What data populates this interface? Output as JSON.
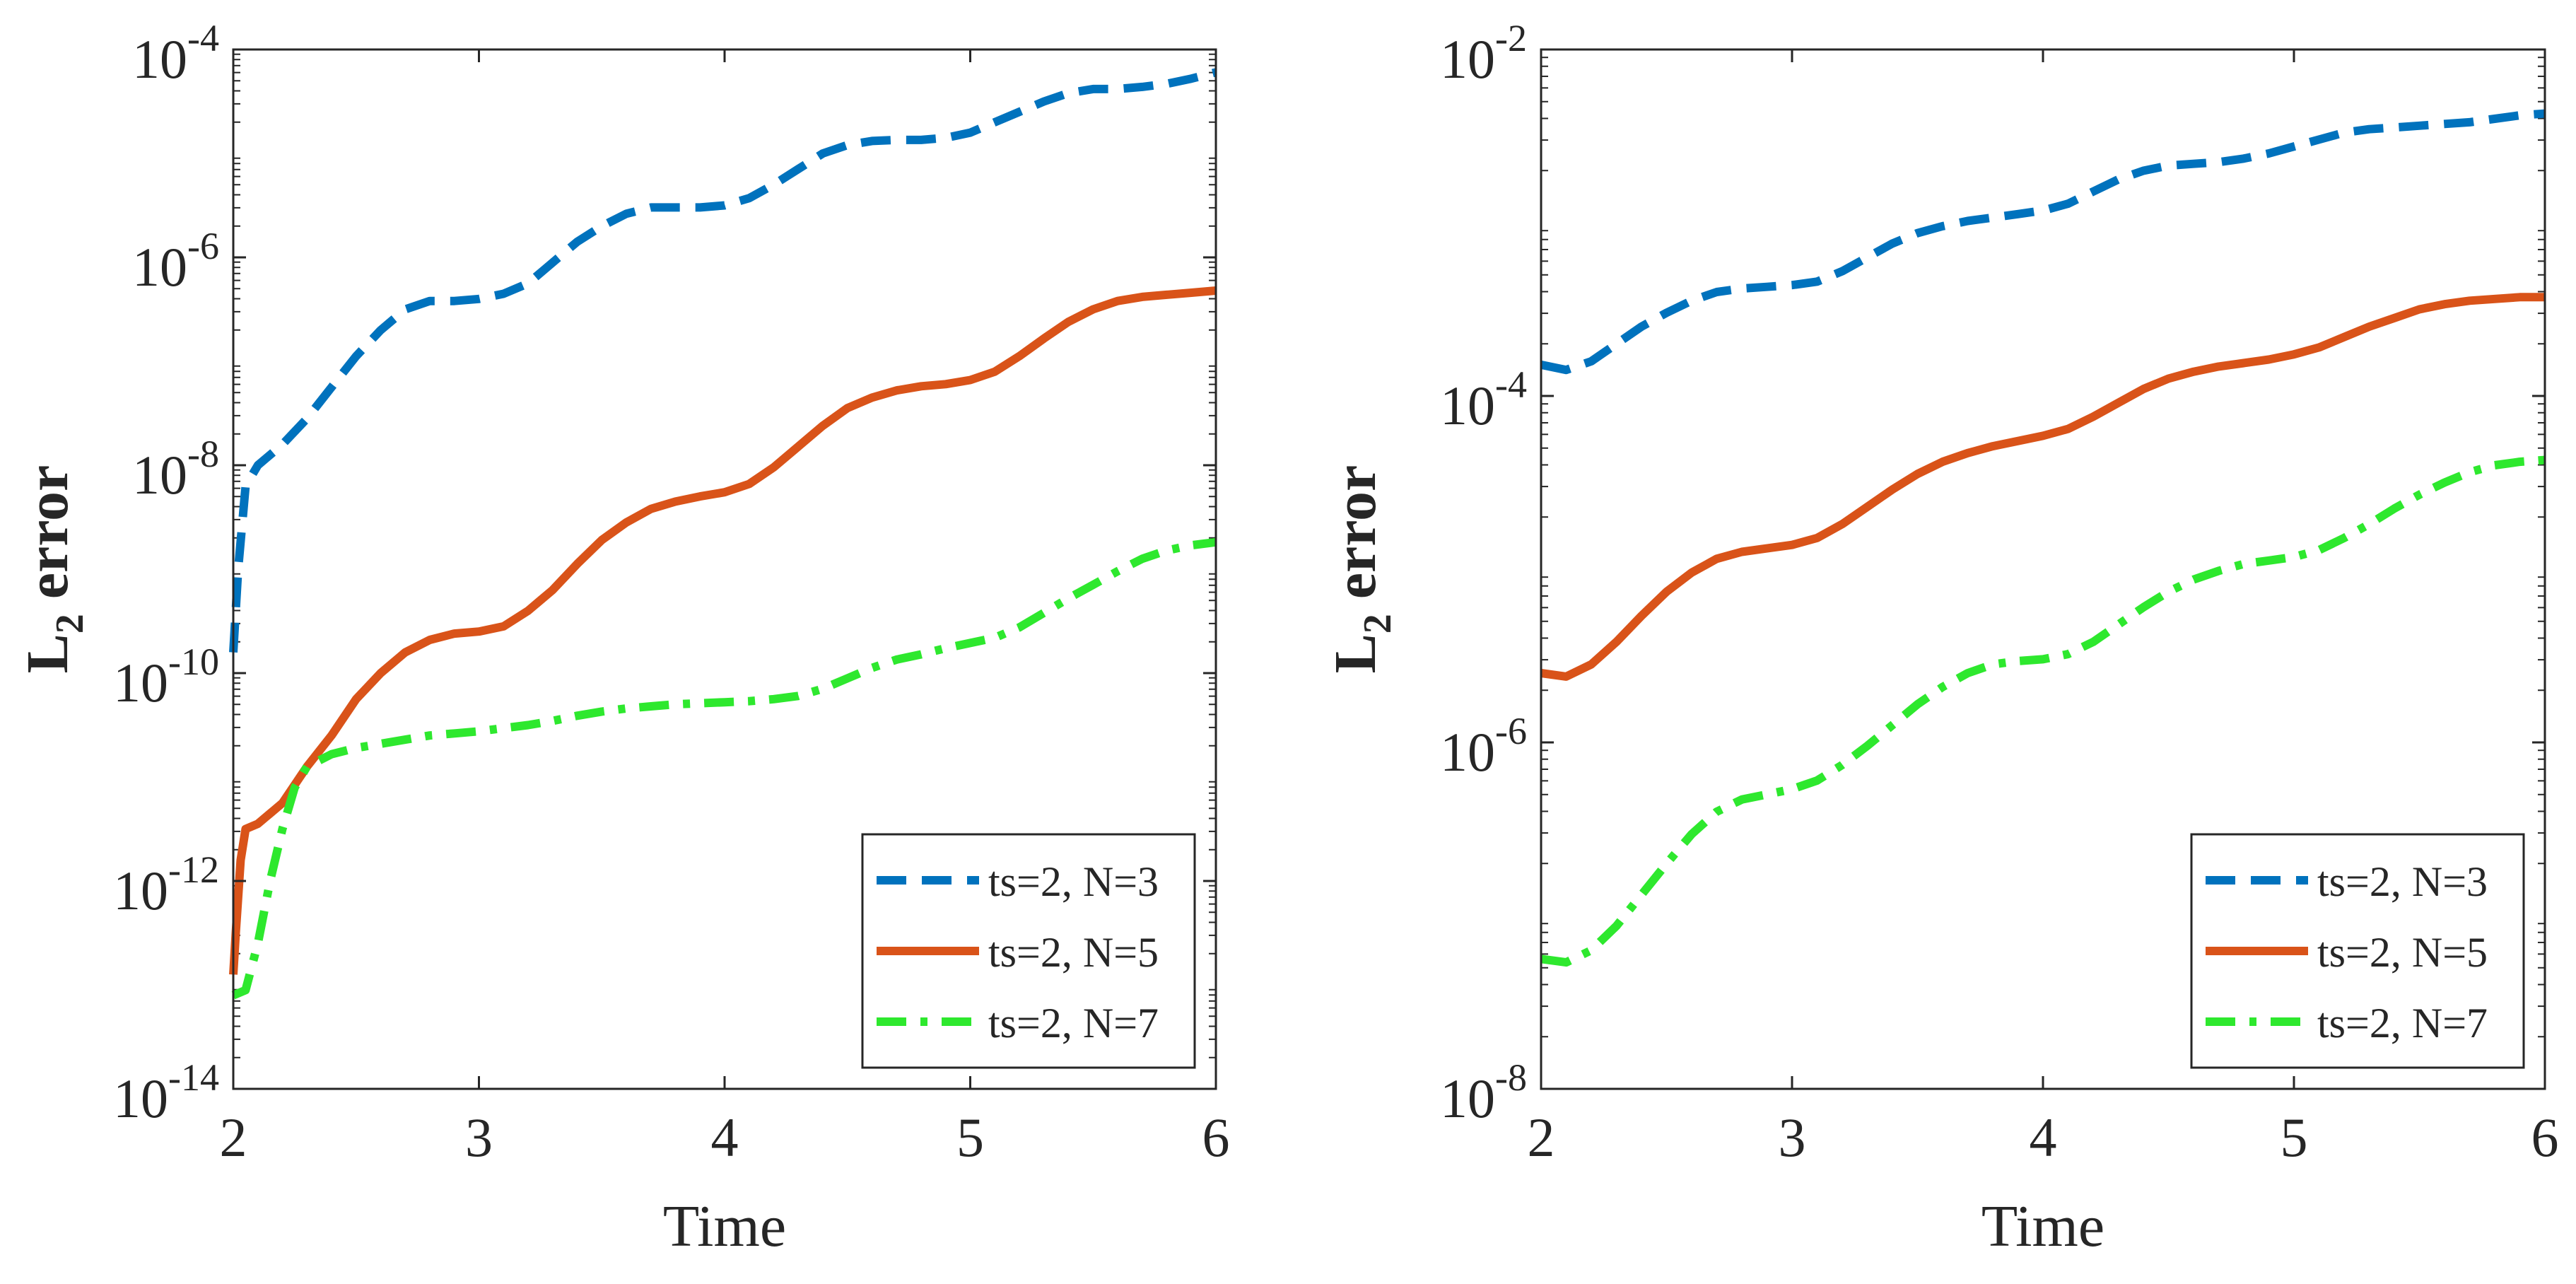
{
  "colors": {
    "n3": "#0072BD",
    "n5": "#D95319",
    "n7": "#2EE82E",
    "axis": "#262626",
    "background": "#FFFFFF"
  },
  "chart_data": [
    {
      "type": "line",
      "yscale": "log",
      "title": "",
      "xlabel": "Time",
      "ylabel_main": "L",
      "ylabel_sub": "2",
      "ylabel_rest": " error",
      "xlim": [
        2,
        6
      ],
      "ylim_exp": [
        -14,
        -4
      ],
      "xticks": [
        "2",
        "3",
        "4",
        "5",
        "6"
      ],
      "yticks": [
        {
          "base": "10",
          "exp": "-14"
        },
        {
          "base": "10",
          "exp": "-12"
        },
        {
          "base": "10",
          "exp": "-10"
        },
        {
          "base": "10",
          "exp": "-8"
        },
        {
          "base": "10",
          "exp": "-6"
        },
        {
          "base": "10",
          "exp": "-4"
        }
      ],
      "legend_position": "bottom-right",
      "series": [
        {
          "name": "ts=2, N=3",
          "style": "dashed",
          "color_key": "n3",
          "points": [
            [
              2.0,
              -9.8
            ],
            [
              2.02,
              -9.0
            ],
            [
              2.05,
              -8.2
            ],
            [
              2.1,
              -8.0
            ],
            [
              2.2,
              -7.8
            ],
            [
              2.3,
              -7.55
            ],
            [
              2.4,
              -7.25
            ],
            [
              2.5,
              -6.95
            ],
            [
              2.6,
              -6.7
            ],
            [
              2.7,
              -6.5
            ],
            [
              2.8,
              -6.42
            ],
            [
              2.9,
              -6.42
            ],
            [
              3.0,
              -6.4
            ],
            [
              3.1,
              -6.35
            ],
            [
              3.2,
              -6.25
            ],
            [
              3.3,
              -6.05
            ],
            [
              3.4,
              -5.85
            ],
            [
              3.5,
              -5.7
            ],
            [
              3.6,
              -5.58
            ],
            [
              3.7,
              -5.52
            ],
            [
              3.8,
              -5.52
            ],
            [
              3.9,
              -5.52
            ],
            [
              4.0,
              -5.5
            ],
            [
              4.1,
              -5.43
            ],
            [
              4.2,
              -5.3
            ],
            [
              4.3,
              -5.15
            ],
            [
              4.4,
              -5.0
            ],
            [
              4.5,
              -4.92
            ],
            [
              4.6,
              -4.88
            ],
            [
              4.7,
              -4.87
            ],
            [
              4.8,
              -4.87
            ],
            [
              4.9,
              -4.85
            ],
            [
              5.0,
              -4.8
            ],
            [
              5.1,
              -4.7
            ],
            [
              5.2,
              -4.6
            ],
            [
              5.3,
              -4.5
            ],
            [
              5.4,
              -4.42
            ],
            [
              5.5,
              -4.38
            ],
            [
              5.6,
              -4.38
            ],
            [
              5.7,
              -4.36
            ],
            [
              5.8,
              -4.33
            ],
            [
              5.9,
              -4.28
            ],
            [
              6.0,
              -4.22
            ]
          ]
        },
        {
          "name": "ts=2, N=5",
          "style": "solid",
          "color_key": "n5",
          "points": [
            [
              2.0,
              -12.9
            ],
            [
              2.01,
              -12.5
            ],
            [
              2.03,
              -11.8
            ],
            [
              2.05,
              -11.5
            ],
            [
              2.1,
              -11.45
            ],
            [
              2.15,
              -11.35
            ],
            [
              2.2,
              -11.25
            ],
            [
              2.3,
              -10.9
            ],
            [
              2.4,
              -10.6
            ],
            [
              2.5,
              -10.25
            ],
            [
              2.6,
              -10.0
            ],
            [
              2.7,
              -9.8
            ],
            [
              2.8,
              -9.68
            ],
            [
              2.9,
              -9.62
            ],
            [
              3.0,
              -9.6
            ],
            [
              3.1,
              -9.55
            ],
            [
              3.2,
              -9.4
            ],
            [
              3.3,
              -9.2
            ],
            [
              3.4,
              -8.95
            ],
            [
              3.5,
              -8.72
            ],
            [
              3.6,
              -8.55
            ],
            [
              3.7,
              -8.42
            ],
            [
              3.8,
              -8.35
            ],
            [
              3.9,
              -8.3
            ],
            [
              4.0,
              -8.26
            ],
            [
              4.1,
              -8.18
            ],
            [
              4.2,
              -8.02
            ],
            [
              4.3,
              -7.82
            ],
            [
              4.4,
              -7.62
            ],
            [
              4.5,
              -7.45
            ],
            [
              4.6,
              -7.35
            ],
            [
              4.7,
              -7.28
            ],
            [
              4.8,
              -7.24
            ],
            [
              4.9,
              -7.22
            ],
            [
              5.0,
              -7.18
            ],
            [
              5.1,
              -7.1
            ],
            [
              5.2,
              -6.95
            ],
            [
              5.3,
              -6.78
            ],
            [
              5.4,
              -6.62
            ],
            [
              5.5,
              -6.5
            ],
            [
              5.6,
              -6.42
            ],
            [
              5.7,
              -6.38
            ],
            [
              5.8,
              -6.36
            ],
            [
              5.9,
              -6.34
            ],
            [
              6.0,
              -6.32
            ]
          ]
        },
        {
          "name": "ts=2, N=7",
          "style": "dashdot",
          "color_key": "n7",
          "points": [
            [
              2.0,
              -13.1
            ],
            [
              2.05,
              -13.05
            ],
            [
              2.1,
              -12.6
            ],
            [
              2.15,
              -12.0
            ],
            [
              2.2,
              -11.5
            ],
            [
              2.25,
              -11.1
            ],
            [
              2.3,
              -10.9
            ],
            [
              2.4,
              -10.78
            ],
            [
              2.5,
              -10.72
            ],
            [
              2.6,
              -10.68
            ],
            [
              2.7,
              -10.64
            ],
            [
              2.8,
              -10.6
            ],
            [
              2.9,
              -10.58
            ],
            [
              3.0,
              -10.56
            ],
            [
              3.1,
              -10.53
            ],
            [
              3.2,
              -10.5
            ],
            [
              3.3,
              -10.46
            ],
            [
              3.4,
              -10.41
            ],
            [
              3.5,
              -10.37
            ],
            [
              3.6,
              -10.34
            ],
            [
              3.7,
              -10.32
            ],
            [
              3.8,
              -10.3
            ],
            [
              3.9,
              -10.29
            ],
            [
              4.0,
              -10.28
            ],
            [
              4.1,
              -10.27
            ],
            [
              4.2,
              -10.25
            ],
            [
              4.3,
              -10.22
            ],
            [
              4.4,
              -10.15
            ],
            [
              4.5,
              -10.05
            ],
            [
              4.6,
              -9.95
            ],
            [
              4.7,
              -9.87
            ],
            [
              4.8,
              -9.82
            ],
            [
              4.9,
              -9.76
            ],
            [
              5.0,
              -9.71
            ],
            [
              5.1,
              -9.66
            ],
            [
              5.2,
              -9.56
            ],
            [
              5.3,
              -9.42
            ],
            [
              5.4,
              -9.28
            ],
            [
              5.5,
              -9.15
            ],
            [
              5.6,
              -9.02
            ],
            [
              5.7,
              -8.9
            ],
            [
              5.8,
              -8.82
            ],
            [
              5.9,
              -8.77
            ],
            [
              6.0,
              -8.74
            ]
          ]
        }
      ]
    },
    {
      "type": "line",
      "yscale": "log",
      "title": "",
      "xlabel": "Time",
      "ylabel_main": "L",
      "ylabel_sub": "2",
      "ylabel_rest": " error",
      "xlim": [
        2,
        6
      ],
      "ylim_exp": [
        -8,
        -2
      ],
      "xticks": [
        "2",
        "3",
        "4",
        "5",
        "6"
      ],
      "yticks": [
        {
          "base": "10",
          "exp": "-8"
        },
        {
          "base": "10",
          "exp": "-6"
        },
        {
          "base": "10",
          "exp": "-4"
        },
        {
          "base": "10",
          "exp": "-2"
        }
      ],
      "legend_position": "bottom-right",
      "series": [
        {
          "name": "ts=2, N=3",
          "style": "dashed",
          "color_key": "n3",
          "points": [
            [
              2.0,
              -3.82
            ],
            [
              2.1,
              -3.85
            ],
            [
              2.2,
              -3.8
            ],
            [
              2.3,
              -3.7
            ],
            [
              2.4,
              -3.6
            ],
            [
              2.5,
              -3.52
            ],
            [
              2.6,
              -3.45
            ],
            [
              2.7,
              -3.4
            ],
            [
              2.8,
              -3.38
            ],
            [
              2.9,
              -3.37
            ],
            [
              3.0,
              -3.36
            ],
            [
              3.1,
              -3.34
            ],
            [
              3.2,
              -3.28
            ],
            [
              3.3,
              -3.2
            ],
            [
              3.4,
              -3.12
            ],
            [
              3.5,
              -3.06
            ],
            [
              3.6,
              -3.02
            ],
            [
              3.7,
              -2.99
            ],
            [
              3.8,
              -2.97
            ],
            [
              3.9,
              -2.95
            ],
            [
              4.0,
              -2.93
            ],
            [
              4.1,
              -2.89
            ],
            [
              4.2,
              -2.82
            ],
            [
              4.3,
              -2.75
            ],
            [
              4.4,
              -2.7
            ],
            [
              4.5,
              -2.67
            ],
            [
              4.6,
              -2.66
            ],
            [
              4.7,
              -2.65
            ],
            [
              4.8,
              -2.63
            ],
            [
              4.9,
              -2.6
            ],
            [
              5.0,
              -2.56
            ],
            [
              5.1,
              -2.52
            ],
            [
              5.2,
              -2.48
            ],
            [
              5.3,
              -2.46
            ],
            [
              5.4,
              -2.45
            ],
            [
              5.5,
              -2.44
            ],
            [
              5.6,
              -2.43
            ],
            [
              5.7,
              -2.42
            ],
            [
              5.8,
              -2.4
            ],
            [
              5.9,
              -2.38
            ],
            [
              6.0,
              -2.37
            ]
          ]
        },
        {
          "name": "ts=2, N=5",
          "style": "solid",
          "color_key": "n5",
          "points": [
            [
              2.0,
              -5.6
            ],
            [
              2.1,
              -5.62
            ],
            [
              2.2,
              -5.55
            ],
            [
              2.3,
              -5.42
            ],
            [
              2.4,
              -5.27
            ],
            [
              2.5,
              -5.13
            ],
            [
              2.6,
              -5.02
            ],
            [
              2.7,
              -4.94
            ],
            [
              2.8,
              -4.9
            ],
            [
              2.9,
              -4.88
            ],
            [
              3.0,
              -4.86
            ],
            [
              3.1,
              -4.82
            ],
            [
              3.2,
              -4.74
            ],
            [
              3.3,
              -4.64
            ],
            [
              3.4,
              -4.54
            ],
            [
              3.5,
              -4.45
            ],
            [
              3.6,
              -4.38
            ],
            [
              3.7,
              -4.33
            ],
            [
              3.8,
              -4.29
            ],
            [
              3.9,
              -4.26
            ],
            [
              4.0,
              -4.23
            ],
            [
              4.1,
              -4.19
            ],
            [
              4.2,
              -4.12
            ],
            [
              4.3,
              -4.04
            ],
            [
              4.4,
              -3.96
            ],
            [
              4.5,
              -3.9
            ],
            [
              4.6,
              -3.86
            ],
            [
              4.7,
              -3.83
            ],
            [
              4.8,
              -3.81
            ],
            [
              4.9,
              -3.79
            ],
            [
              5.0,
              -3.76
            ],
            [
              5.1,
              -3.72
            ],
            [
              5.2,
              -3.66
            ],
            [
              5.3,
              -3.6
            ],
            [
              5.4,
              -3.55
            ],
            [
              5.5,
              -3.5
            ],
            [
              5.6,
              -3.47
            ],
            [
              5.7,
              -3.45
            ],
            [
              5.8,
              -3.44
            ],
            [
              5.9,
              -3.43
            ],
            [
              6.0,
              -3.43
            ]
          ]
        },
        {
          "name": "ts=2, N=7",
          "style": "dashdot",
          "color_key": "n7",
          "points": [
            [
              2.0,
              -7.25
            ],
            [
              2.1,
              -7.27
            ],
            [
              2.2,
              -7.2
            ],
            [
              2.3,
              -7.06
            ],
            [
              2.4,
              -6.88
            ],
            [
              2.5,
              -6.7
            ],
            [
              2.6,
              -6.53
            ],
            [
              2.7,
              -6.4
            ],
            [
              2.8,
              -6.33
            ],
            [
              2.9,
              -6.3
            ],
            [
              3.0,
              -6.27
            ],
            [
              3.1,
              -6.22
            ],
            [
              3.2,
              -6.13
            ],
            [
              3.3,
              -6.02
            ],
            [
              3.4,
              -5.9
            ],
            [
              3.5,
              -5.78
            ],
            [
              3.6,
              -5.68
            ],
            [
              3.7,
              -5.6
            ],
            [
              3.8,
              -5.55
            ],
            [
              3.9,
              -5.53
            ],
            [
              4.0,
              -5.52
            ],
            [
              4.1,
              -5.49
            ],
            [
              4.2,
              -5.42
            ],
            [
              4.3,
              -5.32
            ],
            [
              4.4,
              -5.22
            ],
            [
              4.5,
              -5.13
            ],
            [
              4.6,
              -5.06
            ],
            [
              4.7,
              -5.01
            ],
            [
              4.8,
              -4.97
            ],
            [
              4.9,
              -4.95
            ],
            [
              5.0,
              -4.93
            ],
            [
              5.1,
              -4.89
            ],
            [
              5.2,
              -4.82
            ],
            [
              5.3,
              -4.74
            ],
            [
              5.4,
              -4.65
            ],
            [
              5.5,
              -4.57
            ],
            [
              5.6,
              -4.5
            ],
            [
              5.7,
              -4.44
            ],
            [
              5.8,
              -4.4
            ],
            [
              5.9,
              -4.38
            ],
            [
              6.0,
              -4.37
            ]
          ]
        }
      ]
    }
  ]
}
